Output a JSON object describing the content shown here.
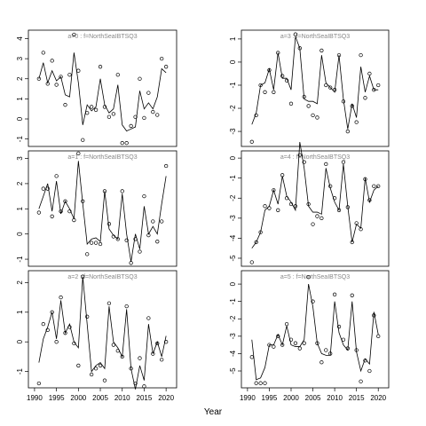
{
  "x_label": "Year",
  "chart_data": [
    {
      "type": "line",
      "title": "a=0 : f=NorthSeaIBTSQ3",
      "x": [
        1991,
        1992,
        1993,
        1994,
        1995,
        1996,
        1997,
        1998,
        1999,
        2000,
        2001,
        2002,
        2003,
        2004,
        2005,
        2006,
        2007,
        2008,
        2009,
        2010,
        2011,
        2012,
        2013,
        2014,
        2015,
        2016,
        2017,
        2018,
        2019,
        2020
      ],
      "xlim": [
        1988.6,
        2022.4
      ],
      "ylim": [
        -1.37,
        4.42
      ],
      "yticks": [
        -1,
        0,
        1,
        2,
        3,
        4
      ],
      "series": [
        {
          "style": "points",
          "color": "#000000",
          "values": [
            2.0,
            3.3,
            1.75,
            2.9,
            1.7,
            2.1,
            0.7,
            2.2,
            4.2,
            2.4,
            -1.05,
            0.3,
            0.6,
            0.45,
            2.6,
            0.6,
            0.1,
            0.25,
            2.2,
            -1.2,
            -1.2,
            -0.35,
            0.1,
            2.0,
            0.05,
            1.3,
            0.35,
            0.2,
            3.0,
            2.6
          ]
        },
        {
          "style": "line",
          "color": "#000000",
          "values": [
            2.0,
            2.8,
            1.8,
            2.4,
            1.9,
            2.1,
            1.2,
            1.1,
            3.3,
            1.8,
            -0.3,
            0.7,
            0.4,
            0.6,
            2.0,
            0.7,
            0.3,
            0.5,
            1.7,
            -0.3,
            -0.6,
            -0.5,
            -0.4,
            1.4,
            0.5,
            0.8,
            0.5,
            1.1,
            2.5,
            2.3
          ]
        }
      ]
    },
    {
      "type": "line",
      "title": "a=1 : f=NorthSeaIBTSQ3",
      "x": [
        1991,
        1992,
        1993,
        1994,
        1995,
        1996,
        1997,
        1998,
        1999,
        2000,
        2001,
        2002,
        2003,
        2004,
        2005,
        2006,
        2007,
        2008,
        2009,
        2010,
        2011,
        2012,
        2013,
        2014,
        2015,
        2016,
        2017,
        2018,
        2019,
        2020
      ],
      "xlim": [
        1988.6,
        2022.4
      ],
      "ylim": [
        -1.28,
        3.3
      ],
      "yticks": [
        -1,
        0,
        1,
        2,
        3
      ],
      "series": [
        {
          "style": "points",
          "color": "#000000",
          "values": [
            0.85,
            1.8,
            1.8,
            0.7,
            2.3,
            0.9,
            1.3,
            0.9,
            0.55,
            3.2,
            1.3,
            -0.8,
            -0.35,
            -0.35,
            -0.4,
            1.7,
            0.4,
            -0.1,
            -0.2,
            1.7,
            -0.25,
            -1.15,
            -0.2,
            -0.7,
            1.5,
            -0.05,
            0.5,
            -0.3,
            0.5,
            2.7
          ]
        },
        {
          "style": "line",
          "color": "#000000",
          "values": [
            1.0,
            1.5,
            2.0,
            0.9,
            2.1,
            0.8,
            1.3,
            1.0,
            0.6,
            2.9,
            1.2,
            -0.4,
            -0.2,
            -0.15,
            -0.3,
            1.7,
            0.2,
            -0.05,
            -0.2,
            1.6,
            0.0,
            -1.1,
            0.0,
            -0.6,
            1.1,
            0.0,
            0.3,
            0.0,
            1.2,
            2.3
          ]
        }
      ]
    },
    {
      "type": "line",
      "title": "a=2 : f=NorthSeaIBTSQ3",
      "x": [
        1991,
        1992,
        1993,
        1994,
        1995,
        1996,
        1997,
        1998,
        1999,
        2000,
        2001,
        2002,
        2003,
        2004,
        2005,
        2006,
        2007,
        2008,
        2009,
        2010,
        2011,
        2012,
        2013,
        2014,
        2015,
        2016,
        2017,
        2018,
        2019,
        2020
      ],
      "xlim": [
        1988.6,
        2022.4
      ],
      "xticks": [
        1990,
        1995,
        2000,
        2005,
        2010,
        2015,
        2020
      ],
      "ylim": [
        -1.55,
        2.4
      ],
      "yticks": [
        -1,
        0,
        1,
        2
      ],
      "series": [
        {
          "style": "points",
          "color": "#000000",
          "values": [
            -1.4,
            0.6,
            0.4,
            1.0,
            0.0,
            1.5,
            0.3,
            0.5,
            -0.05,
            -0.8,
            2.2,
            0.85,
            -1.1,
            -0.9,
            -0.8,
            -1.3,
            1.3,
            -0.1,
            -0.3,
            -0.5,
            1.2,
            -0.9,
            -1.4,
            -0.55,
            -1.5,
            0.8,
            -0.4,
            -0.05,
            -0.6,
            0.0
          ]
        },
        {
          "style": "line",
          "color": "#000000",
          "values": [
            -0.7,
            0.1,
            0.5,
            1.0,
            0.1,
            1.4,
            0.3,
            0.6,
            0.0,
            -0.2,
            2.2,
            0.6,
            -1.0,
            -0.8,
            -0.7,
            -0.9,
            1.2,
            0.0,
            -0.2,
            -0.5,
            1.1,
            -0.9,
            -1.6,
            -0.8,
            -1.3,
            0.6,
            -0.4,
            0.0,
            -0.5,
            0.2
          ]
        }
      ]
    },
    {
      "type": "line",
      "title": "a=3 : f=NorthSeaIBTSQ3",
      "x": [
        1991,
        1992,
        1993,
        1994,
        1995,
        1996,
        1997,
        1998,
        1999,
        2000,
        2001,
        2002,
        2003,
        2004,
        2005,
        2006,
        2007,
        2008,
        2009,
        2010,
        2011,
        2012,
        2013,
        2014,
        2015,
        2016,
        2017,
        2018,
        2019,
        2020
      ],
      "xlim": [
        1988.6,
        2022.4
      ],
      "ylim": [
        -3.65,
        1.38
      ],
      "yticks": [
        -3,
        -2,
        -1,
        0,
        1
      ],
      "series": [
        {
          "style": "points",
          "color": "#000000",
          "values": [
            -3.45,
            -2.3,
            -1.0,
            -1.3,
            -0.35,
            -1.3,
            0.4,
            -0.6,
            -0.8,
            -1.8,
            1.2,
            0.6,
            -1.5,
            -1.9,
            -2.3,
            -2.4,
            0.5,
            -1.0,
            -1.1,
            -1.2,
            0.3,
            -1.7,
            -3.0,
            -1.9,
            -2.6,
            0.3,
            -1.55,
            -0.5,
            -1.2,
            -1.0
          ]
        },
        {
          "style": "line",
          "color": "#000000",
          "values": [
            -2.7,
            -2.2,
            -1.0,
            -0.9,
            -0.3,
            -1.2,
            0.4,
            -0.7,
            -0.7,
            -1.2,
            1.1,
            0.6,
            -1.6,
            -1.7,
            -1.7,
            -1.8,
            0.3,
            -0.9,
            -1.1,
            -1.3,
            0.3,
            -1.6,
            -2.9,
            -1.8,
            -2.4,
            -0.2,
            -1.3,
            -0.6,
            -1.2,
            -1.2
          ]
        }
      ]
    },
    {
      "type": "line",
      "title": "a=4 : f=NorthSeaIBTSQ3",
      "x": [
        1991,
        1992,
        1993,
        1994,
        1995,
        1996,
        1997,
        1998,
        1999,
        2000,
        2001,
        2002,
        2003,
        2004,
        2005,
        2006,
        2007,
        2008,
        2009,
        2010,
        2011,
        2012,
        2013,
        2014,
        2015,
        2016,
        2017,
        2018,
        2019,
        2020
      ],
      "xlim": [
        1988.6,
        2022.4
      ],
      "ylim": [
        -5.4,
        0.36
      ],
      "yticks": [
        -5,
        -4,
        -3,
        -2,
        -1,
        0
      ],
      "series": [
        {
          "style": "points",
          "color": "#000000",
          "values": [
            -5.2,
            -4.2,
            -3.7,
            -2.4,
            -2.5,
            -1.6,
            -2.6,
            -0.85,
            -2.0,
            -2.3,
            -2.4,
            0.15,
            -0.2,
            -2.3,
            -3.3,
            -2.9,
            -3.0,
            -0.3,
            -1.4,
            -2.0,
            -2.6,
            -0.2,
            -2.45,
            -4.2,
            -3.25,
            -3.55,
            -1.05,
            -2.1,
            -1.4,
            -1.4
          ]
        },
        {
          "style": "line",
          "color": "#000000",
          "values": [
            -4.5,
            -4.2,
            -3.7,
            -2.6,
            -2.4,
            -1.6,
            -2.3,
            -0.9,
            -1.9,
            -2.2,
            -2.6,
            0.8,
            -0.5,
            -2.4,
            -2.7,
            -2.7,
            -2.8,
            -0.5,
            -1.5,
            -2.2,
            -2.6,
            -0.3,
            -2.4,
            -4.2,
            -3.3,
            -3.5,
            -1.0,
            -2.2,
            -1.6,
            -1.4
          ]
        }
      ]
    },
    {
      "type": "line",
      "title": "a=5 : f=NorthSeaIBTSQ3",
      "x": [
        1991,
        1992,
        1993,
        1994,
        1995,
        1996,
        1997,
        1998,
        1999,
        2000,
        2001,
        2002,
        2003,
        2004,
        2005,
        2006,
        2007,
        2008,
        2009,
        2010,
        2011,
        2012,
        2013,
        2014,
        2015,
        2016,
        2017,
        2018,
        2019,
        2020
      ],
      "xlim": [
        1988.6,
        2022.4
      ],
      "xticks": [
        1990,
        1995,
        2000,
        2005,
        2010,
        2015,
        2020
      ],
      "ylim": [
        -5.97,
        0.77
      ],
      "yticks": [
        -5,
        -4,
        -3,
        -2,
        -1,
        0
      ],
      "series": [
        {
          "style": "points",
          "color": "#000000",
          "values": [
            -4.2,
            -5.7,
            -5.7,
            -5.7,
            -3.5,
            -3.6,
            -3.0,
            -3.5,
            -2.3,
            -3.2,
            -3.4,
            -3.7,
            -3.4,
            0.4,
            -1.0,
            -3.4,
            -4.5,
            -3.8,
            -4.0,
            -0.6,
            -2.45,
            -3.2,
            -3.7,
            -0.65,
            -3.8,
            -5.6,
            -4.4,
            -5.0,
            -1.8,
            -3.0
          ]
        },
        {
          "style": "line",
          "color": "#000000",
          "values": [
            -3.2,
            -5.5,
            -5.4,
            -4.8,
            -3.5,
            -3.5,
            -2.9,
            -3.5,
            -2.4,
            -3.5,
            -3.6,
            -3.6,
            -3.2,
            0.0,
            -1.3,
            -3.4,
            -4.0,
            -4.1,
            -4.1,
            -1.0,
            -2.8,
            -3.5,
            -3.8,
            -1.0,
            -3.9,
            -5.0,
            -4.3,
            -4.6,
            -1.6,
            -2.9
          ]
        }
      ]
    }
  ]
}
